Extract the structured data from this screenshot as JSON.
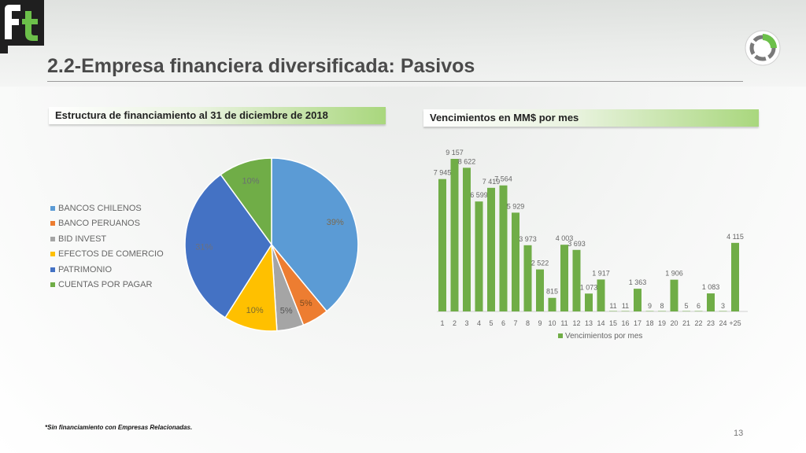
{
  "page": {
    "title": "2.2-Empresa financiera diversificada: Pasivos",
    "footnote": "*Sin financiamiento con Empresas Relacionadas.",
    "page_number": "13"
  },
  "left_section": {
    "heading": "Estructura de financiamiento al 31 de diciembre de 2018"
  },
  "right_section": {
    "heading": "Vencimientos en MM$ por mes"
  },
  "chart_data": [
    {
      "type": "pie",
      "title": "",
      "legend_position": "left",
      "labels": [
        "BANCOS CHILENOS",
        "BANCO PERUANOS",
        "BID INVEST",
        "EFECTOS DE COMERCIO",
        "PATRIMONIO",
        "CUENTAS POR PAGAR"
      ],
      "values": [
        39,
        5,
        5,
        10,
        31,
        10
      ],
      "data_labels": [
        "39%",
        "5%",
        "5%",
        "10%",
        "31%",
        "10%"
      ],
      "colors": [
        "#5b9bd5",
        "#ed7d31",
        "#a5a5a5",
        "#ffc000",
        "#4472c4",
        "#70ad47"
      ]
    },
    {
      "type": "bar",
      "title": "",
      "legend": [
        "Vencimientos por mes"
      ],
      "legend_position": "bottom",
      "grid": false,
      "categories": [
        "1",
        "2",
        "3",
        "4",
        "5",
        "6",
        "7",
        "8",
        "9",
        "10",
        "11",
        "12",
        "13",
        "14",
        "15",
        "16",
        "17",
        "18",
        "19",
        "20",
        "21",
        "22",
        "23",
        "24",
        "+25"
      ],
      "series": [
        {
          "name": "Vencimientos por mes",
          "values": [
            7945,
            9157,
            8622,
            6599,
            7419,
            7564,
            5929,
            3973,
            2522,
            815,
            4003,
            3693,
            1073,
            1917,
            11,
            11,
            1363,
            9,
            8,
            1906,
            5,
            6,
            1083,
            3,
            4115
          ],
          "data_labels": [
            "7 945",
            "9 157",
            "8 622",
            "6 599",
            "7 419",
            "7 564",
            "5 929",
            "3 973",
            "2 522",
            "815",
            "4 003",
            "3 693",
            "1 073",
            "1 917",
            "11",
            "11",
            "1 363",
            "9",
            "8",
            "1 906",
            "5",
            "6",
            "1 083",
            "3",
            "4 115"
          ],
          "color": "#70ad47"
        }
      ],
      "ylim": [
        0,
        9157
      ]
    }
  ]
}
